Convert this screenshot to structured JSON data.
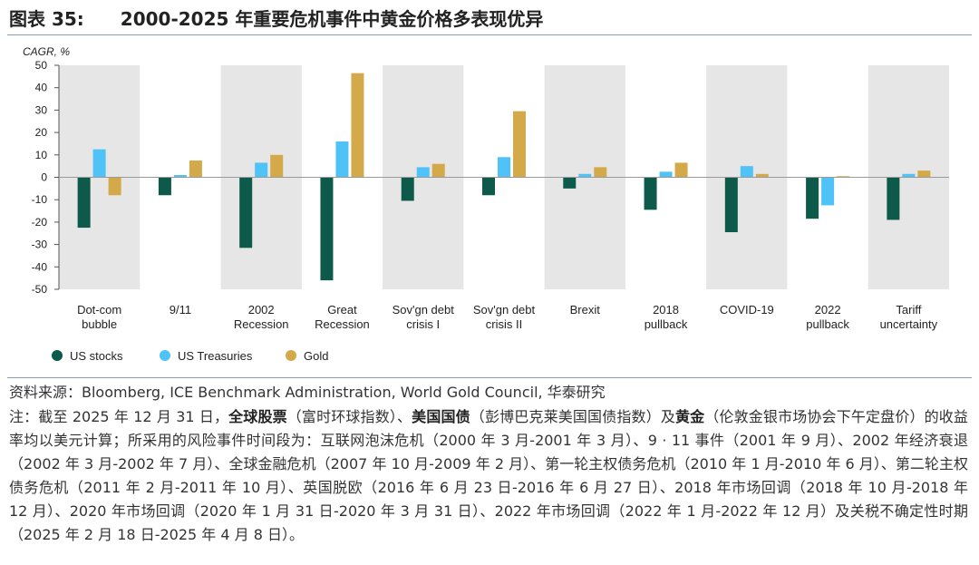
{
  "header": {
    "label": "图表 35:",
    "title": "2000-2025 年重要危机事件中黄金价格多表现优异"
  },
  "chart_data": {
    "type": "bar",
    "ylabel": "CAGR, %",
    "ylim": [
      -50,
      50
    ],
    "yticks": [
      50,
      40,
      30,
      20,
      10,
      0,
      -10,
      -20,
      -30,
      -40,
      -50
    ],
    "categories": [
      [
        "Dot-com",
        "bubble"
      ],
      [
        "9/11"
      ],
      [
        "2002",
        "Recession"
      ],
      [
        "Great",
        "Recession"
      ],
      [
        "Sov'gn debt",
        "crisis I"
      ],
      [
        "Sov'gn debt",
        "crisis II"
      ],
      [
        "Brexit"
      ],
      [
        "2018",
        "pullback"
      ],
      [
        "COVID-19"
      ],
      [
        "2022",
        "pullback"
      ],
      [
        "Tariff",
        "uncertainty"
      ]
    ],
    "series": [
      {
        "name": "US stocks",
        "color": "#0e5a4a",
        "values": [
          -22.5,
          -8,
          -31.5,
          -46,
          -10.5,
          -8,
          -5,
          -14.5,
          -24.5,
          -18.5,
          -19
        ]
      },
      {
        "name": "US Treasuries",
        "color": "#4fc3f7",
        "values": [
          12.5,
          1,
          6.5,
          16,
          4.5,
          9,
          1.5,
          2.5,
          5,
          -12.5,
          1.5
        ]
      },
      {
        "name": "Gold",
        "color": "#d4a94a",
        "values": [
          -8,
          7.5,
          10,
          46.5,
          6,
          29.5,
          4.5,
          6.5,
          1.5,
          0.5,
          3
        ]
      }
    ],
    "grid": false,
    "legend": "bottom-left",
    "shaded_categories": [
      0,
      2,
      4,
      6,
      8,
      10
    ],
    "shade_color": "#e6e6e6"
  },
  "footer": {
    "source": "资料来源：Bloomberg, ICE Benchmark Administration, World Gold Council,  华泰研究",
    "note_prefix": "注：截至 2025 年 12 月 31 日，",
    "note_stocks": "全球股票",
    "note_part2": "（富时环球指数）、",
    "note_treasuries": "美国国债",
    "note_part3": "（彭博巴克莱美国国债指数）及",
    "note_gold": "黄金",
    "note_part4": "（伦敦金银市场协会下午定盘价）的收益率均以美元计算；所采用的风险事件时间段为：互联网泡沫危机（2000 年 3 月-2001 年 3 月）、9 · 11 事件（2001 年 9 月）、2002 年经济衰退（2002 年 3 月-2002 年 7 月）、全球金融危机（2007 年 10 月-2009 年 2 月）、第一轮主权债务危机（2010 年 1 月-2010 年 6 月）、第二轮主权债务危机（2011 年 2 月-2011 年 10 月）、英国脱欧（2016 年 6 月 23 日-2016 年 6 月 27 日）、2018 年市场回调（2018 年 10 月-2018 年 12 月）、2020 年市场回调（2020 年 1 月 31 日-2020 年 3 月 31 日）、2022 年市场回调（2022 年 1 月-2022 年 12 月）及关税不确定性时期（2025 年 2 月 18 日-2025 年 4 月 8 日）。"
  }
}
